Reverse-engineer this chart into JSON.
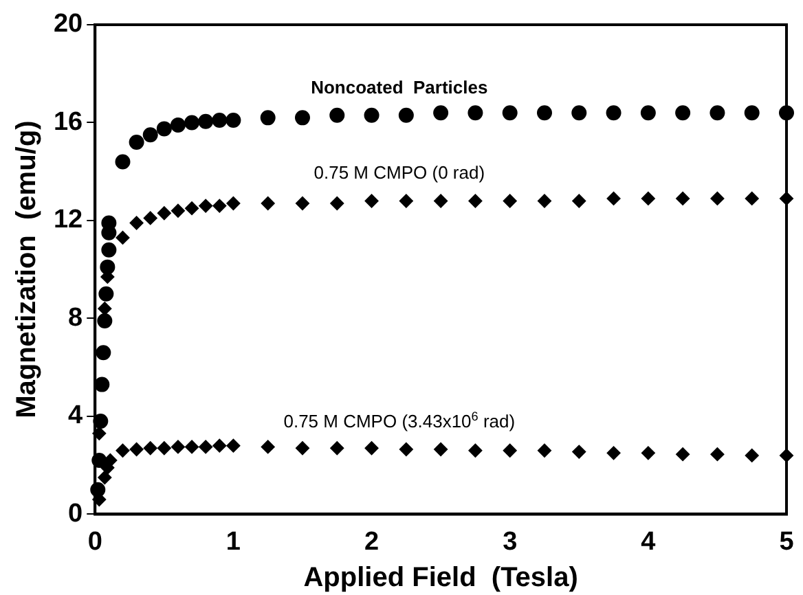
{
  "chart_data": {
    "type": "scatter",
    "xlabel": "Applied Field  (Tesla)",
    "ylabel": "Magnetization  (emu/g)",
    "xlim": [
      0,
      5
    ],
    "xticks": [
      0,
      1,
      2,
      3,
      4,
      5
    ],
    "ylim": [
      0,
      20
    ],
    "yticks": [
      0,
      4,
      8,
      12,
      16,
      20
    ],
    "grid": false,
    "legend": false,
    "series": [
      {
        "name": "Noncoated  Particles",
        "color": "#000000",
        "marker": "circle",
        "x": [
          0.02,
          0.03,
          0.04,
          0.05,
          0.06,
          0.07,
          0.08,
          0.09,
          0.1,
          0.1,
          0.1,
          0.2,
          0.3,
          0.4,
          0.5,
          0.6,
          0.7,
          0.8,
          0.9,
          1,
          1.25,
          1.5,
          1.75,
          2,
          2.25,
          2.5,
          2.75,
          3,
          3.25,
          3.5,
          3.75,
          4,
          4.25,
          4.5,
          4.75,
          5
        ],
        "values": [
          1,
          2.2,
          3.8,
          5.3,
          6.6,
          7.9,
          9,
          10.1,
          10.8,
          11.5,
          11.9,
          14.4,
          15.2,
          15.5,
          15.75,
          15.9,
          16,
          16.05,
          16.1,
          16.1,
          16.2,
          16.2,
          16.3,
          16.3,
          16.3,
          16.4,
          16.4,
          16.4,
          16.4,
          16.4,
          16.4,
          16.4,
          16.4,
          16.4,
          16.4,
          16.4
        ]
      },
      {
        "name": "0.75 M CMPO (0 rad)",
        "color": "#000000",
        "marker": "diamond",
        "x": [
          0.03,
          0.05,
          0.07,
          0.09,
          0.2,
          0.3,
          0.4,
          0.5,
          0.6,
          0.7,
          0.8,
          0.9,
          1,
          1.25,
          1.5,
          1.75,
          2,
          2.25,
          2.5,
          2.75,
          3,
          3.25,
          3.5,
          3.75,
          4,
          4.25,
          4.5,
          4.75,
          5
        ],
        "values": [
          3.3,
          null,
          8.4,
          9.7,
          11.3,
          11.9,
          12.1,
          12.3,
          12.4,
          12.5,
          12.6,
          12.6,
          12.7,
          12.7,
          12.7,
          12.7,
          12.8,
          12.8,
          12.8,
          12.8,
          12.8,
          12.8,
          12.8,
          12.9,
          12.9,
          12.9,
          12.9,
          12.9,
          12.9
        ]
      },
      {
        "name": "0.75 M CMPO (3.43x10$^{6}$ rad)",
        "color": "#000000",
        "marker": "diamond",
        "x": [
          0.03,
          0.05,
          0.07,
          0.09,
          0.11,
          0.2,
          0.3,
          0.4,
          0.5,
          0.6,
          0.7,
          0.8,
          0.9,
          1,
          1.25,
          1.5,
          1.75,
          2,
          2.25,
          2.5,
          2.75,
          3,
          3.25,
          3.5,
          3.75,
          4,
          4.25,
          4.5,
          4.75,
          5
        ],
        "values": [
          0.6,
          null,
          1.5,
          1.9,
          2.2,
          2.6,
          2.65,
          2.7,
          2.7,
          2.75,
          2.75,
          2.75,
          2.8,
          2.8,
          2.75,
          2.7,
          2.7,
          2.7,
          2.65,
          2.65,
          2.6,
          2.6,
          2.6,
          2.55,
          2.5,
          2.5,
          2.45,
          2.45,
          2.4,
          2.4
        ]
      }
    ]
  }
}
